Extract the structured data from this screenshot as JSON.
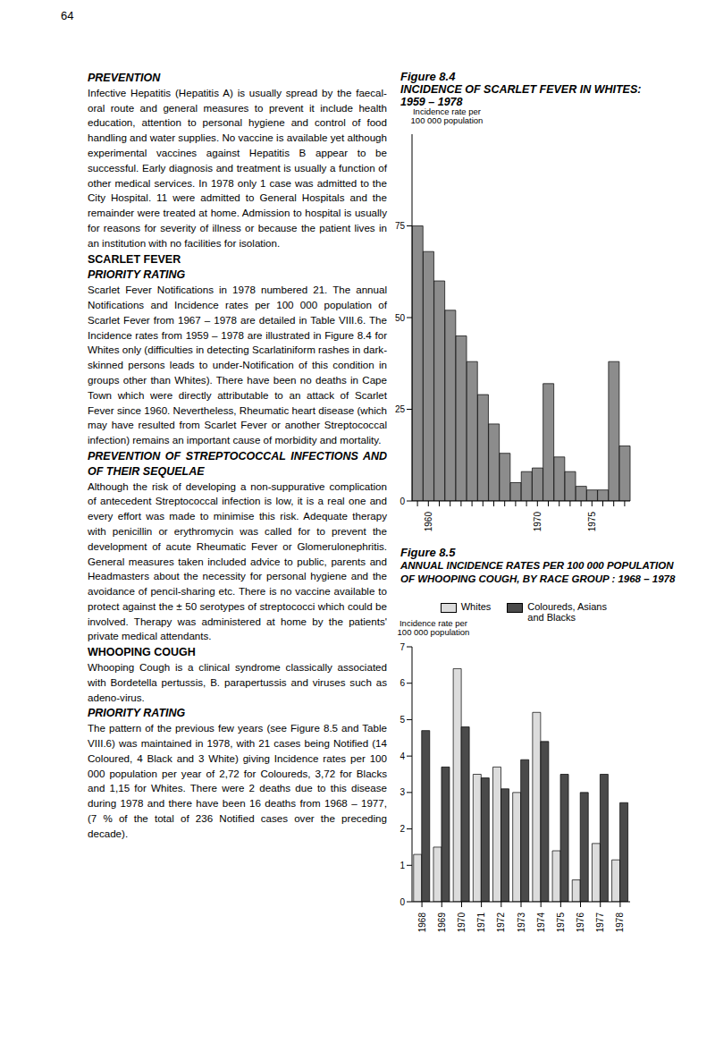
{
  "page_number": "64",
  "left_column": [
    {
      "kind": "heading",
      "style": "italic",
      "text": "PREVENTION"
    },
    {
      "kind": "paragraph",
      "text": "Infective Hepatitis (Hepatitis A) is usually spread by the faecal-oral route and general measures to prevent it include health education, attention to personal hygiene and control of food handling and water supplies. No vaccine is available yet although experimental vaccines against Hepatitis B appear to be successful. Early diagnosis and treatment is usually a function of other medical services. In 1978 only 1 case was admitted to the City Hospital. 11 were admitted to General Hospitals and the remainder were treated at home. Admission to hospital is usually for reasons for severity of illness or because the patient lives in an institution with no facilities for isolation."
    },
    {
      "kind": "heading",
      "style": "bold",
      "text": "SCARLET FEVER"
    },
    {
      "kind": "heading",
      "style": "italic",
      "text": "PRIORITY RATING"
    },
    {
      "kind": "paragraph",
      "text": "Scarlet Fever Notifications in 1978 numbered 21. The annual Notifications and Incidence rates per 100 000 population of Scarlet Fever from 1967 – 1978 are detailed in Table VIII.6. The Incidence rates from 1959 – 1978 are illustrated in Figure 8.4 for Whites only (difficulties in detecting Scarlatiniform rashes in dark-skinned persons leads to under-Notification of this condition in groups other than Whites). There have been no deaths in Cape Town which were directly attributable to an attack of Scarlet Fever since 1960. Nevertheless, Rheumatic heart disease (which may have resulted from Scarlet Fever or another Streptococcal infection) remains an important cause of morbidity and mortality."
    },
    {
      "kind": "heading",
      "style": "italic",
      "text": "PREVENTION OF STREPTOCOCCAL INFECTIONS AND OF THEIR SEQUELAE"
    },
    {
      "kind": "paragraph",
      "text": "Although the risk of developing a non-suppurative complication of antecedent Streptococcal infection is low, it is a real one and every effort was made to minimise this risk. Adequate therapy with penicillin or erythromycin was called for to prevent the development of acute Rheumatic Fever or Glomerulonephritis. General measures taken included advice to public, parents and Headmasters about the necessity for personal hygiene and the avoidance of pencil-sharing etc. There is no vaccine available to protect against the ± 50 serotypes of streptococci which could be involved. Therapy was administered at home by the patients' private medical attendants."
    },
    {
      "kind": "heading",
      "style": "bold",
      "text": "WHOOPING COUGH"
    },
    {
      "kind": "paragraph",
      "text": "Whooping Cough is a clinical syndrome classically associated with Bordetella pertussis, B. parapertussis and viruses such as adeno-virus."
    },
    {
      "kind": "heading",
      "style": "italic",
      "text": "PRIORITY RATING"
    },
    {
      "kind": "paragraph",
      "text": "The pattern of the previous few years (see Figure 8.5 and Table VIII.6) was maintained in 1978, with 21 cases being Notified (14 Coloured, 4 Black and 3 White) giving Incidence rates per 100 000 population per year of 2,72 for Coloureds, 3,72 for Blacks and 1,15 for Whites. There were 2 deaths due to this disease during 1978 and there have been 16 deaths from 1968 – 1977, (7 % of the total of 236 Notified cases over the preceding decade)."
    }
  ],
  "chart_data": [
    {
      "type": "bar",
      "figure": "Figure 8.4",
      "title": "INCIDENCE OF SCARLET FEVER IN WHITES:\n1959 – 1978",
      "y_label": "Incidence rate per\n100 000 population",
      "categories": [
        null,
        "1960",
        null,
        null,
        null,
        null,
        null,
        null,
        null,
        null,
        null,
        "1970",
        null,
        null,
        null,
        null,
        "1975",
        null,
        null,
        null
      ],
      "values": [
        75,
        68,
        60,
        52,
        45,
        38,
        29,
        21,
        13,
        5,
        8,
        9,
        32,
        12,
        8,
        4,
        3,
        3,
        38,
        15
      ],
      "color": "#8c8c8c",
      "ylim": [
        0,
        100
      ],
      "yticks": [
        0,
        25,
        50,
        75
      ],
      "grid": false
    },
    {
      "type": "bar",
      "figure": "Figure 8.5",
      "title": "ANNUAL INCIDENCE RATES PER 100 000 POPULATION\nOF WHOOPING COUGH, BY RACE GROUP : 1968 – 1978",
      "y_label": "Incidence rate per\n100 000 population",
      "categories": [
        "1968",
        "1969",
        "1970",
        "1971",
        "1972",
        "1973",
        "1974",
        "1975",
        "1976",
        "1977",
        "1978"
      ],
      "series": [
        {
          "name": "Whites",
          "color": "#dcdcdc",
          "values": [
            1.3,
            1.5,
            6.4,
            3.5,
            3.7,
            3.0,
            5.2,
            1.4,
            0.6,
            1.6,
            1.15
          ]
        },
        {
          "name": "Coloureds, Asians and Blacks",
          "color": "#4a4a4a",
          "values": [
            4.7,
            3.7,
            4.8,
            3.4,
            3.1,
            3.9,
            4.4,
            3.5,
            3.0,
            3.5,
            2.72
          ]
        }
      ],
      "ylim": [
        0,
        7
      ],
      "yticks": [
        0,
        1,
        2,
        3,
        4,
        5,
        6,
        7
      ],
      "legend": "top",
      "grid": false
    }
  ]
}
